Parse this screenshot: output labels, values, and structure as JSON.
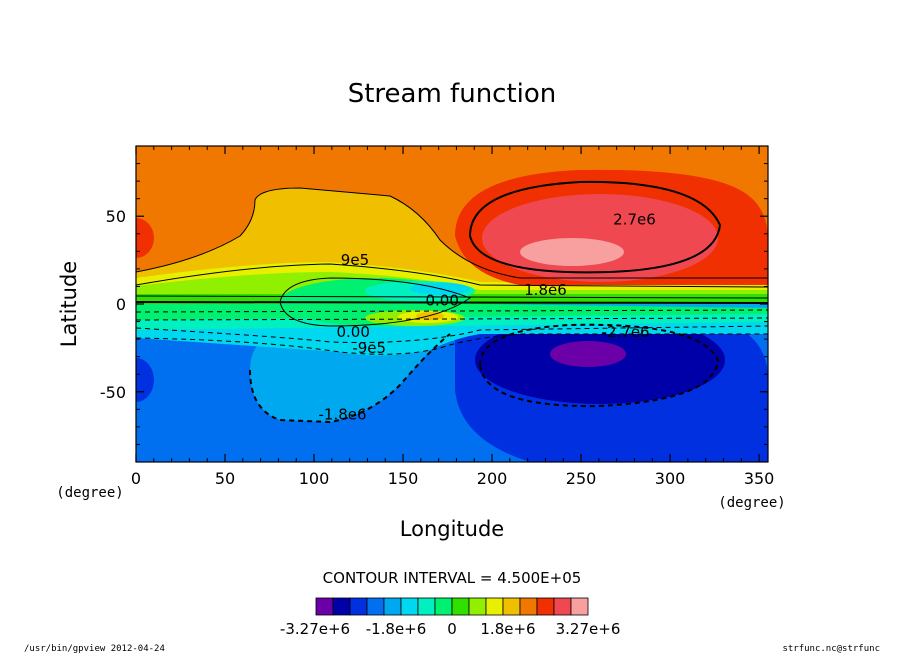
{
  "chart_data": {
    "type": "heatmap",
    "title": "Stream function",
    "xlabel": "Longitude",
    "ylabel": "Latitude",
    "x_unit": "(degree)",
    "y_unit": "(degree)",
    "xlim": [
      0,
      355
    ],
    "ylim": [
      -90,
      90
    ],
    "x_ticks": [
      0,
      50,
      100,
      150,
      200,
      250,
      300,
      350
    ],
    "y_ticks": [
      -50,
      0,
      50
    ],
    "contour_interval_text": "CONTOUR INTERVAL = 4.500E+05",
    "contour_labels": [
      {
        "text": "2.7e6",
        "lon": 280,
        "lat": 48
      },
      {
        "text": "9e5",
        "lon": 123,
        "lat": 25
      },
      {
        "text": "1.8e6",
        "lon": 230,
        "lat": 8
      },
      {
        "text": "0.00",
        "lon": 172,
        "lat": 2
      },
      {
        "text": "0.00",
        "lon": 122,
        "lat": -16
      },
      {
        "text": "-9e5",
        "lon": 131,
        "lat": -25
      },
      {
        "text": "-2.7e6",
        "lon": 275,
        "lat": -16
      },
      {
        "text": "-1.8e6",
        "lon": 116,
        "lat": -63
      }
    ],
    "colorbar": {
      "colors": [
        "#6c00a8",
        "#0000a8",
        "#0030e0",
        "#0070f0",
        "#00a8f0",
        "#00d8f0",
        "#00f0c0",
        "#00f070",
        "#30e000",
        "#90f000",
        "#e8f000",
        "#f0c000",
        "#f07800",
        "#f03000",
        "#f04850",
        "#f8a0a0"
      ],
      "tick_labels": [
        "-3.27e+6",
        "-1.8e+6",
        "0",
        "1.8e+6",
        "3.27e+6"
      ]
    },
    "field_levels_example": {
      "north_high_center": {
        "lon": 250,
        "lat": 28,
        "approx_value": 3200000.0
      },
      "south_low_center": {
        "lon": 245,
        "lat": -28,
        "approx_value": -3200000.0
      },
      "equatorial_min_north": {
        "lon": 165,
        "lat": 8,
        "approx_value": -450000.0
      },
      "equatorial_max_south": {
        "lon": 165,
        "lat": -7,
        "approx_value": 500000.0
      }
    }
  },
  "footer": {
    "left": "/usr/bin/gpview  2012-04-24",
    "right": "strfunc.nc@strfunc"
  }
}
